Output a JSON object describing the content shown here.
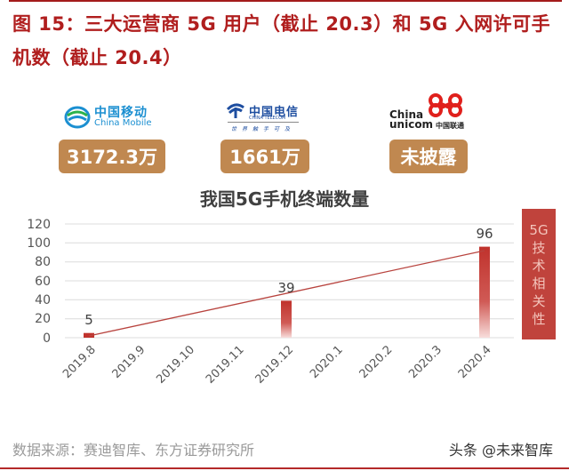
{
  "figure": {
    "title_line1": "图 15：三大运营商 5G 用户（截止 20.3）和 5G 入网许可手",
    "title_line2": "机数（截止 20.4）"
  },
  "operators": [
    {
      "name_cn": "中国移动",
      "name_en": "China Mobile",
      "value": "3172.3万",
      "logo": "china-mobile-logo",
      "color": "#1b8fd1"
    },
    {
      "name_cn": "中国电信",
      "name_en": "CHINA TELECOM",
      "slogan": "世界触手可及",
      "value": "1661万",
      "logo": "china-telecom-logo",
      "color": "#1e4ea0"
    },
    {
      "name_cn": "中国联通",
      "name_en_1": "China",
      "name_en_2": "unicom",
      "value": "未披露",
      "logo": "china-unicom-logo",
      "color": "#e0201c"
    }
  ],
  "badge_color": "#c08850",
  "side_label": [
    "5G",
    "技",
    "术",
    "相",
    "关",
    "性"
  ],
  "source": "数据来源：赛迪智库、东方证券研究所",
  "watermark": "头条 @未来智库",
  "chart_data": {
    "type": "bar",
    "title": "我国5G手机终端数量",
    "categories": [
      "2019.8",
      "2019.9",
      "2019.10",
      "2019.11",
      "2019.12",
      "2020.1",
      "2020.2",
      "2020.3",
      "2020.4"
    ],
    "values": [
      5,
      null,
      null,
      null,
      39,
      null,
      null,
      null,
      96
    ],
    "data_labels": {
      "2019.8": "5",
      "2019.12": "39",
      "2020.4": "96"
    },
    "trendline": {
      "type": "linear",
      "from": {
        "x": "2019.8",
        "y": 2
      },
      "to": {
        "x": "2020.4",
        "y": 92
      }
    },
    "xlabel": "",
    "ylabel": "",
    "ylim": [
      0,
      120
    ],
    "yticks": [
      0,
      20,
      40,
      60,
      80,
      100,
      120
    ],
    "grid": true,
    "legend": "none",
    "bar_color": "#c0322c"
  }
}
